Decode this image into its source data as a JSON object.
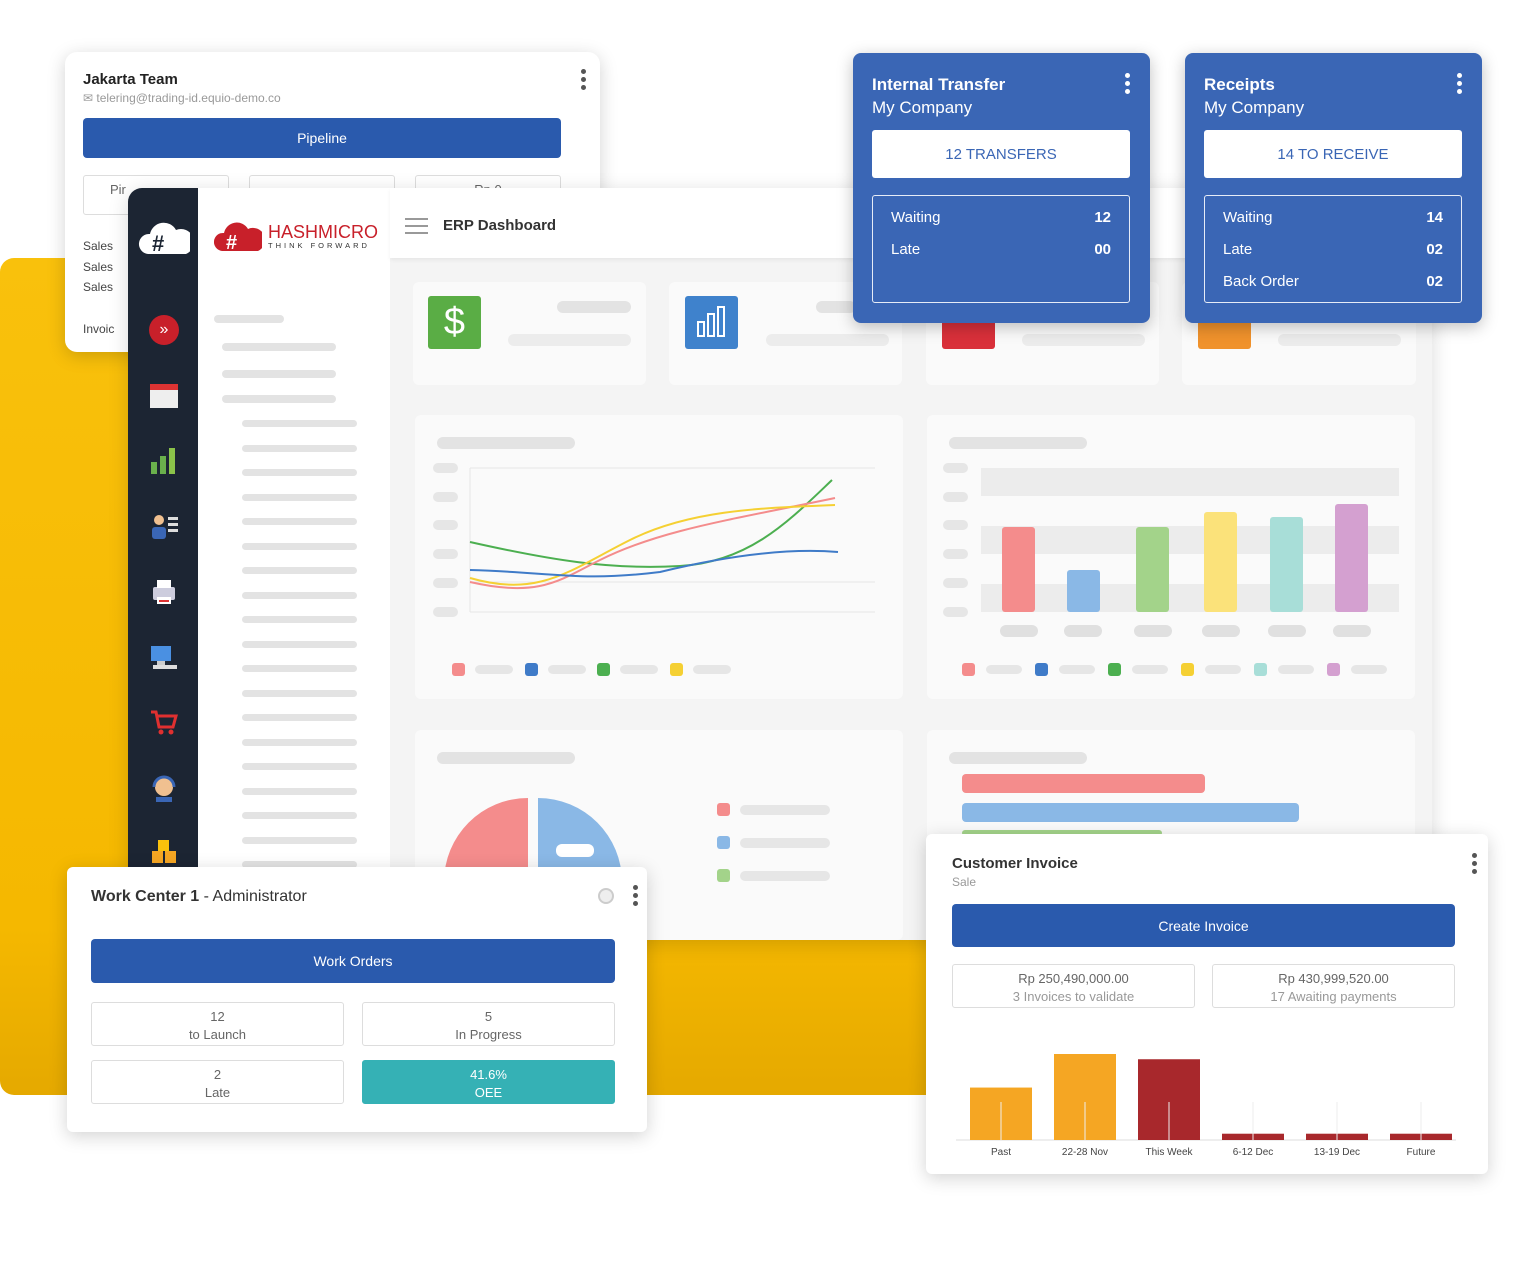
{
  "jakarta_card": {
    "title": "Jakarta Team",
    "email": "telering@trading-id.equio-demo.co",
    "button": "Pipeline",
    "stat_partial": [
      "Pir",
      "",
      "Rp 0"
    ],
    "rows": [
      "Sales",
      "Sales",
      "Sales",
      "Invoic"
    ]
  },
  "dashboard": {
    "brand": "HASHMICRO",
    "tagline": "THINK FORWARD",
    "title": "ERP Dashboard",
    "sidebar_icons": [
      "expand-icon",
      "calendar-icon",
      "bar-chart-icon",
      "employee-icon",
      "printer-icon",
      "computer-icon",
      "cart-icon",
      "support-icon",
      "boxes-icon"
    ],
    "stat_icons": [
      "dollar-icon",
      "chart-icon",
      "document-icon",
      "clock-icon"
    ],
    "line_colors": [
      "#4caf50",
      "#f48c8c",
      "#f5d033",
      "#3f7bc8"
    ],
    "bar_colors": [
      "#f48c8c",
      "#8ab8e6",
      "#a3d38a",
      "#fbe27a",
      "#a8ded8",
      "#d4a0d0"
    ],
    "legend_colors": [
      "#f48c8c",
      "#3f7bc8",
      "#4caf50",
      "#f5d033",
      "#a8ded8",
      "#d4a0d0"
    ]
  },
  "internal_transfer": {
    "title": "Internal Transfer",
    "company": "My Company",
    "button": "12 TRANSFERS",
    "rows": [
      {
        "label": "Waiting",
        "value": "12"
      },
      {
        "label": "Late",
        "value": "00"
      }
    ]
  },
  "receipts": {
    "title": "Receipts",
    "company": "My Company",
    "button": "14 TO RECEIVE",
    "rows": [
      {
        "label": "Waiting",
        "value": "14"
      },
      {
        "label": "Late",
        "value": "02"
      },
      {
        "label": "Back Order",
        "value": "02"
      }
    ]
  },
  "work_center": {
    "title": "Work Center 1",
    "subtitle": "- Administrator",
    "button": "Work Orders",
    "stats": [
      {
        "value": "12",
        "label": "to Launch"
      },
      {
        "value": "5",
        "label": "In Progress"
      },
      {
        "value": "2",
        "label": "Late"
      },
      {
        "value": "41.6%",
        "label": "OEE"
      }
    ],
    "oee_color": "#35b1b5"
  },
  "customer_invoice": {
    "title": "Customer Invoice",
    "subtitle": "Sale",
    "button": "Create Invoice",
    "stats": [
      {
        "amount": "Rp 250,490,000.00",
        "label": "3 Invoices to validate"
      },
      {
        "amount": "Rp 430,999,520.00",
        "label": "17 Awaiting payments"
      }
    ]
  },
  "chart_data": {
    "type": "bar",
    "categories": [
      "Past",
      "22-28 Nov",
      "This Week",
      "6-12 Dec",
      "13-19 Dec",
      "Future"
    ],
    "values": [
      50,
      82,
      77,
      6,
      6,
      6
    ],
    "colors": [
      "#f5a623",
      "#f5a623",
      "#a8282c",
      "#a8282c",
      "#a8282c",
      "#a8282c"
    ],
    "grid": false,
    "title": "",
    "xlabel": "",
    "ylabel": ""
  }
}
